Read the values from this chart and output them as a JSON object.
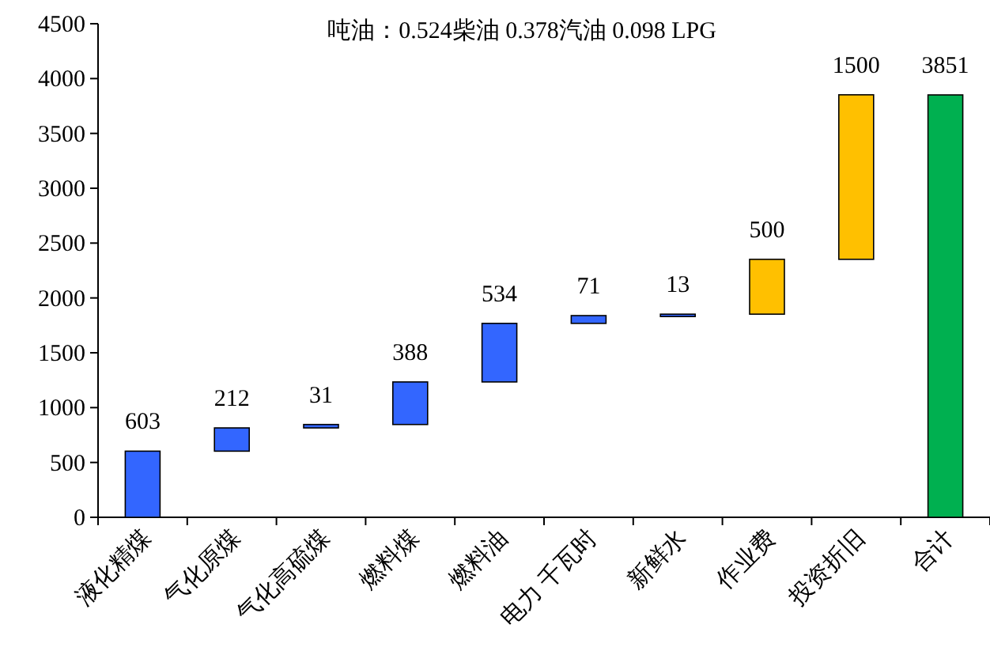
{
  "chart_data": {
    "type": "bar",
    "title": "吨油：0.524柴油 0.378汽油 0.098 LPG",
    "categories": [
      "液化精煤",
      "气化原煤",
      "气化高硫煤",
      "燃料煤",
      "燃料油",
      "电力 千瓦时",
      "新鲜水",
      "作业费",
      "投资折旧",
      "合计"
    ],
    "values": [
      603,
      212,
      31,
      388,
      534,
      71,
      13,
      500,
      1500,
      3851
    ],
    "base": [
      0,
      603,
      815,
      846,
      1234,
      1768,
      1839,
      1852,
      2352,
      0
    ],
    "colors": [
      "#3366ff",
      "#3366ff",
      "#3366ff",
      "#3366ff",
      "#3366ff",
      "#3366ff",
      "#3366ff",
      "#ffc000",
      "#ffc000",
      "#00b050"
    ],
    "ylim": [
      0,
      4500
    ],
    "yticks": [
      0,
      500,
      1000,
      1500,
      2000,
      2500,
      3000,
      3500,
      4000,
      4500
    ],
    "data_labels": true,
    "grid": false
  }
}
